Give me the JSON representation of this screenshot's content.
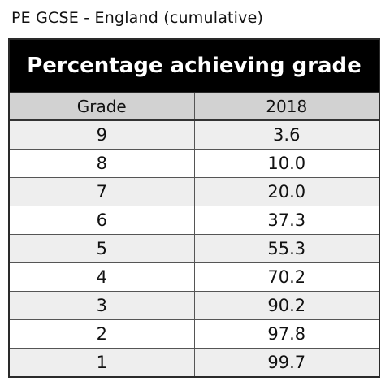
{
  "caption": "PE GCSE - England (cumulative)",
  "table": {
    "title": "Percentage achieving grade",
    "headers": [
      "Grade",
      "2018"
    ],
    "rows": [
      {
        "grade": "9",
        "value": "3.6"
      },
      {
        "grade": "8",
        "value": "10.0"
      },
      {
        "grade": "7",
        "value": "20.0"
      },
      {
        "grade": "6",
        "value": "37.3"
      },
      {
        "grade": "5",
        "value": "55.3"
      },
      {
        "grade": "4",
        "value": "70.2"
      },
      {
        "grade": "3",
        "value": "90.2"
      },
      {
        "grade": "2",
        "value": "97.8"
      },
      {
        "grade": "1",
        "value": "99.7"
      }
    ]
  },
  "colors": {
    "title_bg": "#000000",
    "header_bg": "#d2d2d2",
    "row_shade": "#eeeeee",
    "row_plain": "#ffffff"
  }
}
